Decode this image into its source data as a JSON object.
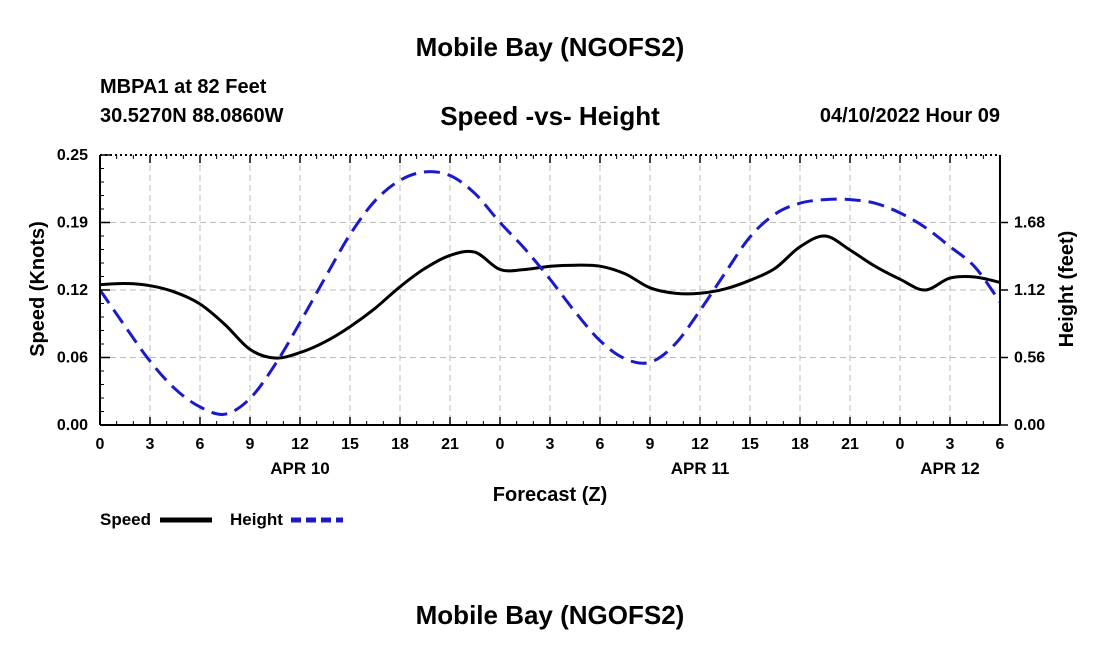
{
  "header": {
    "title": "Mobile Bay (NGOFS2)",
    "station": "MBPA1 at 82 Feet",
    "coordinates": "30.5270N  88.0860W",
    "subtitle": "Speed -vs- Height",
    "datestamp": "04/10/2022 Hour 09"
  },
  "footer": {
    "title": "Mobile Bay (NGOFS2)"
  },
  "colors": {
    "speed": "#000000",
    "height": "#1a1acc",
    "grid": "#bbbbbb"
  },
  "chart_data": {
    "type": "line",
    "xlabel": "Forecast (Z)",
    "ylabel": "Speed (Knots)",
    "y2label": "Height (feet)",
    "x_range_hours": [
      0,
      54
    ],
    "xticks": [
      "0",
      "3",
      "6",
      "9",
      "12",
      "15",
      "18",
      "21",
      "0",
      "3",
      "6",
      "9",
      "12",
      "15",
      "18",
      "21",
      "0",
      "3",
      "6"
    ],
    "date_labels": [
      {
        "label": "APR 10",
        "tick_index": 4
      },
      {
        "label": "APR 11",
        "tick_index": 12
      },
      {
        "label": "APR 12",
        "tick_index": 17
      }
    ],
    "ylim": [
      0,
      0.25
    ],
    "yticks": [
      "0.00",
      "0.06",
      "0.12",
      "0.19",
      "0.25"
    ],
    "ytick_values": [
      0,
      0.0625,
      0.125,
      0.1875,
      0.25
    ],
    "y2lim": [
      0,
      2.24
    ],
    "y2ticks": [
      "0.00",
      "0.56",
      "1.12",
      "1.68"
    ],
    "y2tick_values": [
      0,
      0.56,
      1.12,
      1.68
    ],
    "grid": true,
    "legend_position": "bottom-left",
    "series": [
      {
        "name": "Speed",
        "axis": "left",
        "style": "solid",
        "x": [
          0,
          1.5,
          3,
          4.5,
          6,
          7.5,
          9,
          10.5,
          12,
          13.5,
          15,
          16.5,
          18,
          19.5,
          21,
          22.5,
          24,
          25.5,
          27,
          28.5,
          30,
          31.5,
          33,
          34.5,
          36,
          37.5,
          39,
          40.5,
          42,
          43.5,
          45,
          46.5,
          48,
          49.5,
          51,
          52.5,
          54
        ],
        "values": [
          0.13,
          0.131,
          0.129,
          0.123,
          0.112,
          0.093,
          0.07,
          0.062,
          0.067,
          0.077,
          0.091,
          0.108,
          0.128,
          0.145,
          0.157,
          0.16,
          0.144,
          0.144,
          0.147,
          0.148,
          0.147,
          0.14,
          0.127,
          0.122,
          0.122,
          0.126,
          0.134,
          0.145,
          0.165,
          0.175,
          0.162,
          0.147,
          0.135,
          0.125,
          0.136,
          0.137,
          0.132
        ]
      },
      {
        "name": "Height",
        "axis": "right",
        "style": "dashed",
        "x": [
          0,
          1.5,
          3,
          4.5,
          6,
          7.5,
          9,
          10.5,
          12,
          13.5,
          15,
          16.5,
          18,
          19.5,
          21,
          22.5,
          24,
          25.5,
          27,
          28.5,
          30,
          31.5,
          33,
          34.5,
          36,
          37.5,
          39,
          40.5,
          42,
          43.5,
          45,
          46.5,
          48,
          49.5,
          51,
          52.5,
          54
        ],
        "values": [
          1.12,
          0.82,
          0.53,
          0.3,
          0.15,
          0.09,
          0.22,
          0.5,
          0.85,
          1.22,
          1.58,
          1.86,
          2.03,
          2.1,
          2.07,
          1.92,
          1.68,
          1.46,
          1.21,
          0.94,
          0.7,
          0.55,
          0.52,
          0.67,
          0.95,
          1.26,
          1.56,
          1.75,
          1.84,
          1.87,
          1.87,
          1.84,
          1.76,
          1.64,
          1.48,
          1.31,
          1.02
        ]
      }
    ]
  }
}
